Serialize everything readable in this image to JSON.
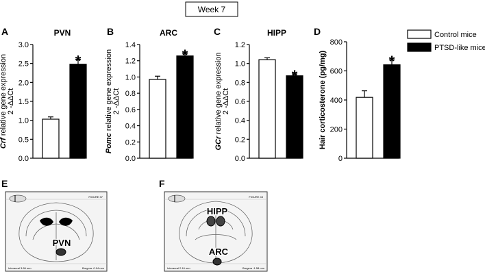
{
  "figure_title": "Week 7",
  "legend": {
    "items": [
      {
        "label": "Control mice",
        "color": "#ffffff"
      },
      {
        "label": "PTSD-like mice",
        "color": "#000000"
      }
    ]
  },
  "chart_data": [
    {
      "type": "bar",
      "panel": "A",
      "title": "PVN",
      "ylabel_gene": "Crf",
      "ylabel_rest": " relative gene expression",
      "ylabel_formula": "2 -ΔΔCt",
      "categories": [
        "Control mice",
        "PTSD-like mice"
      ],
      "values": [
        1.03,
        2.48
      ],
      "errors": [
        0.06,
        0.13
      ],
      "significance": [
        "",
        "*"
      ],
      "ylim": [
        0,
        3.0
      ],
      "yticks": [
        "0.0",
        "0.5",
        "1.0",
        "1.5",
        "2.0",
        "2.5",
        "3.0"
      ]
    },
    {
      "type": "bar",
      "panel": "B",
      "title": "ARC",
      "ylabel_gene": "Pomc",
      "ylabel_rest": " relative gene expression",
      "ylabel_formula": "2 -ΔΔCt",
      "categories": [
        "Control mice",
        "PTSD-like mice"
      ],
      "values": [
        0.97,
        1.26
      ],
      "errors": [
        0.04,
        0.03
      ],
      "significance": [
        "",
        "*"
      ],
      "ylim": [
        0,
        1.4
      ],
      "yticks": [
        "0.0",
        "0.2",
        "0.4",
        "0.6",
        "0.8",
        "1.0",
        "1.2",
        "1.4"
      ]
    },
    {
      "type": "bar",
      "panel": "C",
      "title": "HIPP",
      "ylabel_gene": "GCr",
      "ylabel_rest": " relative gene expression",
      "ylabel_formula": "2 -ΔΔCt",
      "categories": [
        "Control mice",
        "PTSD-like mice"
      ],
      "values": [
        1.04,
        0.87
      ],
      "errors": [
        0.02,
        0.02
      ],
      "significance": [
        "",
        "*"
      ],
      "ylim": [
        0,
        1.2
      ],
      "yticks": [
        "0.0",
        "0.2",
        "0.4",
        "0.6",
        "0.8",
        "1.0",
        "1.2"
      ]
    },
    {
      "type": "bar",
      "panel": "D",
      "title": "",
      "ylabel_gene": "",
      "ylabel_rest": "Hair corticosterone (pg/mg)",
      "ylabel_formula": "",
      "categories": [
        "Control mice",
        "PTSD-like mice"
      ],
      "values": [
        418,
        642
      ],
      "errors": [
        45,
        35
      ],
      "significance": [
        "",
        "*"
      ],
      "ylim": [
        0,
        800
      ],
      "yticks": [
        "0",
        "200",
        "400",
        "600",
        "800"
      ]
    }
  ],
  "atlas_panels": [
    {
      "panel": "E",
      "regions": [
        "PVN"
      ],
      "header_right": "FIGURE 37",
      "footer_left": "Interaural 3.86 mm",
      "footer_right": "Bregma -0.94 mm"
    },
    {
      "panel": "F",
      "regions": [
        "HIPP",
        "ARC"
      ],
      "header_right": "FIGURE 43",
      "footer_left": "Interaural 2.16 mm",
      "footer_right": "Bregma -1.58 mm"
    }
  ]
}
